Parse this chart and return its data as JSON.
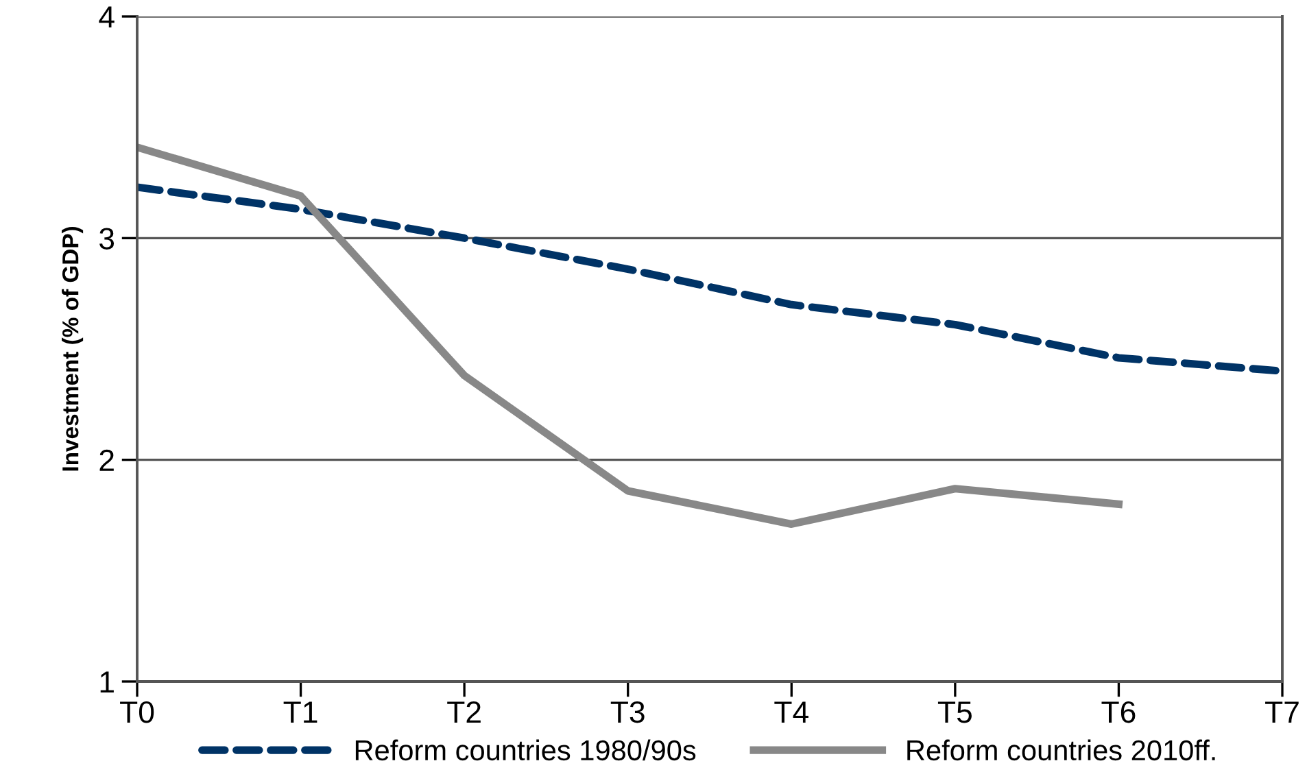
{
  "chart_data": {
    "type": "line",
    "ylabel": "Investment (% of GDP)",
    "categories": [
      "T0",
      "T1",
      "T2",
      "T3",
      "T4",
      "T5",
      "T6",
      "T7"
    ],
    "series": [
      {
        "name": "Reform countries 1980/90s",
        "color": "#003366",
        "line_style": "dashed",
        "values": [
          3.23,
          3.13,
          3.0,
          2.86,
          2.7,
          2.61,
          2.46,
          2.4
        ]
      },
      {
        "name": "Reform countries 2010ff.",
        "color": "#888888",
        "line_style": "solid",
        "values": [
          3.41,
          3.19,
          2.38,
          1.86,
          1.71,
          1.87,
          1.8,
          null
        ]
      }
    ],
    "ylim": [
      1,
      4
    ],
    "yticks": [
      1,
      2,
      3,
      4
    ],
    "grid": "y",
    "legend": "bottom",
    "marker": "none"
  }
}
